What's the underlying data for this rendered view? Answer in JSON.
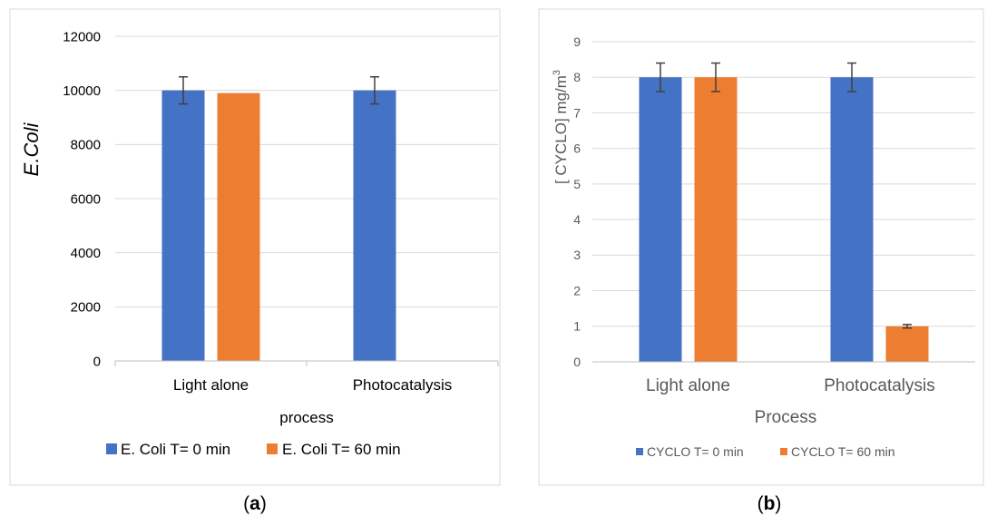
{
  "colors": {
    "series0": "#4472C4",
    "series1": "#ED7D31",
    "grid": "#D9D9D9",
    "axis": "#BFBFBF",
    "text": "#000000",
    "text_b": "#595959",
    "error_bar": "#404040",
    "frame": "#D9D9D9"
  },
  "chart_data": [
    {
      "type": "bar",
      "caption": "(a)",
      "categories": [
        "Light alone",
        "Photocatalysis"
      ],
      "series": [
        {
          "name": "E. Coli T= 0 min",
          "values": [
            10000,
            10000
          ],
          "error": [
            500,
            500
          ]
        },
        {
          "name": "E. Coli T= 60 min",
          "values": [
            9900,
            0
          ],
          "error": [
            0,
            0
          ]
        }
      ],
      "xlabel": "process",
      "ylabel": "E.Coli",
      "ylim": [
        0,
        12000
      ],
      "yticks": [
        "0",
        "2000",
        "4000",
        "6000",
        "8000",
        "10000",
        "12000"
      ],
      "grid": true,
      "legend_position": "bottom"
    },
    {
      "type": "bar",
      "caption": "(b)",
      "categories": [
        "Light alone",
        "Photocatalysis"
      ],
      "series": [
        {
          "name": "CYCLO T= 0 min",
          "values": [
            8,
            8
          ],
          "error": [
            0.4,
            0.4
          ]
        },
        {
          "name": "CYCLO T= 60 min",
          "values": [
            8,
            1
          ],
          "error": [
            0.4,
            0.05
          ]
        }
      ],
      "xlabel": "Process",
      "ylabel": "[ CYCLO] mg/m",
      "ylabel_superscript": "3",
      "ylim": [
        0,
        9
      ],
      "yticks": [
        "0",
        "1",
        "2",
        "3",
        "4",
        "5",
        "6",
        "7",
        "8",
        "9"
      ],
      "grid": true,
      "legend_position": "bottom"
    }
  ]
}
